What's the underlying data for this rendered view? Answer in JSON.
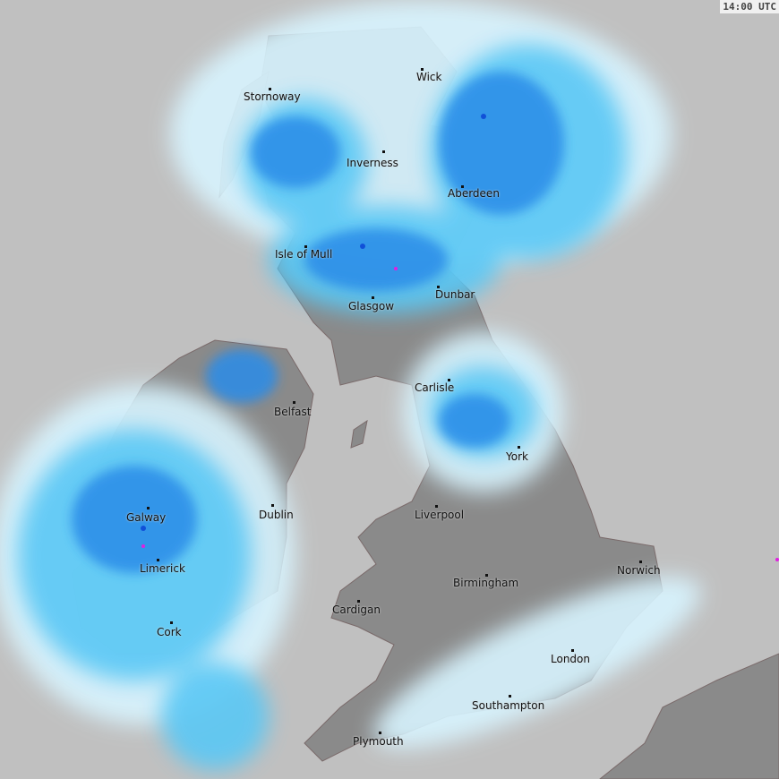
{
  "timestamp": "14:00 UTC",
  "colors": {
    "sea": "#c0c0c0",
    "land": "#8a8a8a",
    "rain_light": "#d8f4ff",
    "rain_moderate": "#5ac8f5",
    "rain_heavy": "#2a8ce8",
    "rain_very_heavy": "#1050d8",
    "rain_extreme": "#e020e0"
  },
  "cities": [
    {
      "name": "Stornoway"
    },
    {
      "name": "Wick"
    },
    {
      "name": "Inverness"
    },
    {
      "name": "Aberdeen"
    },
    {
      "name": "Isle of Mull"
    },
    {
      "name": "Dunbar"
    },
    {
      "name": "Glasgow"
    },
    {
      "name": "Carlisle"
    },
    {
      "name": "Belfast"
    },
    {
      "name": "York"
    },
    {
      "name": "Galway"
    },
    {
      "name": "Dublin"
    },
    {
      "name": "Liverpool"
    },
    {
      "name": "Norwich"
    },
    {
      "name": "Limerick"
    },
    {
      "name": "Birmingham"
    },
    {
      "name": "Cardigan"
    },
    {
      "name": "Cork"
    },
    {
      "name": "London"
    },
    {
      "name": "Southampton"
    },
    {
      "name": "Plymouth"
    }
  ]
}
